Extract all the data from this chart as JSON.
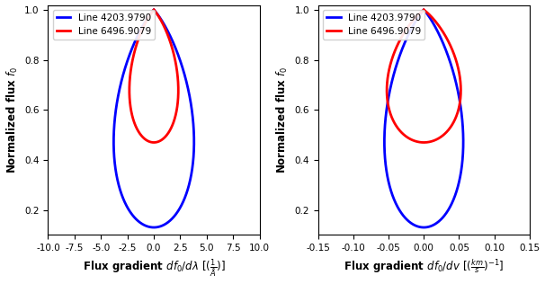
{
  "blue_color": "#0000FF",
  "red_color": "#FF0000",
  "line1_label": "Line 4203.9790",
  "line2_label": "Line 6496.9079",
  "xlim1": [
    -10.0,
    10.0
  ],
  "xlim2": [
    -0.15,
    0.15
  ],
  "ylim": [
    0.1,
    1.02
  ],
  "yticks": [
    0.2,
    0.4,
    0.6,
    0.8,
    1.0
  ],
  "xticks1": [
    -10.0,
    -7.5,
    -5.0,
    -2.5,
    0.0,
    2.5,
    5.0,
    7.5,
    10.0
  ],
  "xticks2": [
    -0.15,
    -0.1,
    -0.05,
    0.0,
    0.05,
    0.1,
    0.15
  ],
  "figsize": [
    6.06,
    3.16
  ],
  "dpi": 100,
  "linewidth": 2.0
}
